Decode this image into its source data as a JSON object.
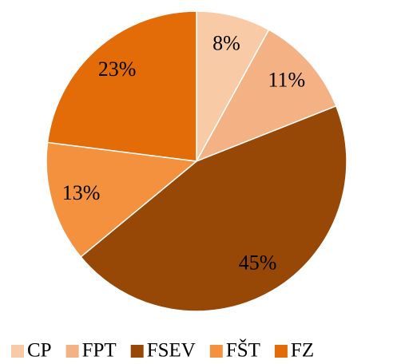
{
  "chart_data": {
    "type": "pie",
    "categories": [
      "CP",
      "FPT",
      "FSEV",
      "FŠT",
      "FZ"
    ],
    "values": [
      8,
      11,
      45,
      13,
      23
    ],
    "value_labels": [
      "8%",
      "11%",
      "45%",
      "13%",
      "23%"
    ],
    "colors": [
      "#f8cba6",
      "#f4b183",
      "#974706",
      "#f4913f",
      "#e36c09"
    ],
    "legend": "bottom"
  }
}
